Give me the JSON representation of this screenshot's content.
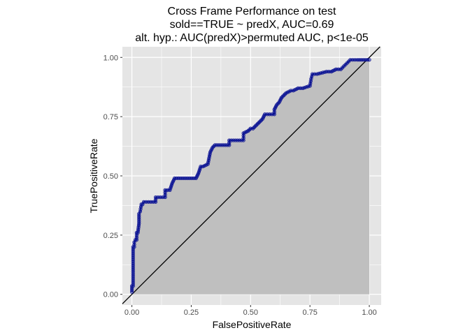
{
  "colors": {
    "panel_background": "#e5e5e5",
    "grid": "#ffffff",
    "area_fill": "#bfbfbf",
    "curve_line": "#00008b",
    "curve_point": "#1f2fa0",
    "diagonal": "#000000",
    "tick_text": "#4d4d4d"
  },
  "chart_data": {
    "type": "area",
    "title_lines": [
      "Cross Frame Performance on test",
      "sold==TRUE ~ predX, AUC=0.69",
      "alt. hyp.: AUC(predX)>permuted AUC, p<1e-05"
    ],
    "xlabel": "FalsePositiveRate",
    "ylabel": "TruePositiveRate",
    "xlim": [
      -0.04,
      1.05
    ],
    "ylim": [
      -0.045,
      1.045
    ],
    "x_ticks": [
      0,
      0.25,
      0.5,
      0.75,
      1
    ],
    "x_tick_labels": [
      "0.00",
      "0.25",
      "0.50",
      "0.75",
      "1.00"
    ],
    "y_ticks": [
      0,
      0.25,
      0.5,
      0.75,
      1
    ],
    "y_tick_labels": [
      "0.00",
      "0.25",
      "0.50",
      "0.75",
      "1.00"
    ],
    "grid": true,
    "legend": "none",
    "diagonal_reference": true,
    "series": [
      {
        "x": [
          0.0,
          0.0,
          0.005,
          0.005,
          0.01,
          0.01,
          0.015,
          0.02,
          0.02,
          0.025,
          0.03,
          0.03,
          0.035,
          0.04,
          0.045,
          0.05,
          0.06,
          0.07,
          0.1,
          0.1,
          0.12,
          0.14,
          0.14,
          0.16,
          0.17,
          0.18,
          0.27,
          0.28,
          0.29,
          0.3,
          0.32,
          0.33,
          0.34,
          0.35,
          0.41,
          0.41,
          0.47,
          0.47,
          0.49,
          0.5,
          0.51,
          0.52,
          0.53,
          0.54,
          0.55,
          0.56,
          0.57,
          0.58,
          0.6,
          0.6,
          0.61,
          0.62,
          0.63,
          0.64,
          0.65,
          0.67,
          0.68,
          0.7,
          0.72,
          0.75,
          0.755,
          0.76,
          0.78,
          0.82,
          0.84,
          0.86,
          0.88,
          0.9,
          0.92,
          0.95,
          1.0
        ],
        "y": [
          0.01,
          0.035,
          0.035,
          0.2,
          0.2,
          0.22,
          0.23,
          0.23,
          0.26,
          0.26,
          0.3,
          0.34,
          0.35,
          0.38,
          0.38,
          0.39,
          0.39,
          0.39,
          0.39,
          0.41,
          0.41,
          0.41,
          0.44,
          0.44,
          0.47,
          0.49,
          0.49,
          0.51,
          0.54,
          0.54,
          0.55,
          0.6,
          0.62,
          0.63,
          0.63,
          0.65,
          0.65,
          0.68,
          0.69,
          0.7,
          0.7,
          0.71,
          0.72,
          0.73,
          0.74,
          0.76,
          0.76,
          0.76,
          0.76,
          0.78,
          0.8,
          0.81,
          0.83,
          0.84,
          0.85,
          0.86,
          0.86,
          0.87,
          0.87,
          0.88,
          0.91,
          0.93,
          0.93,
          0.94,
          0.94,
          0.95,
          0.95,
          0.97,
          0.99,
          0.99,
          0.99
        ]
      }
    ]
  }
}
